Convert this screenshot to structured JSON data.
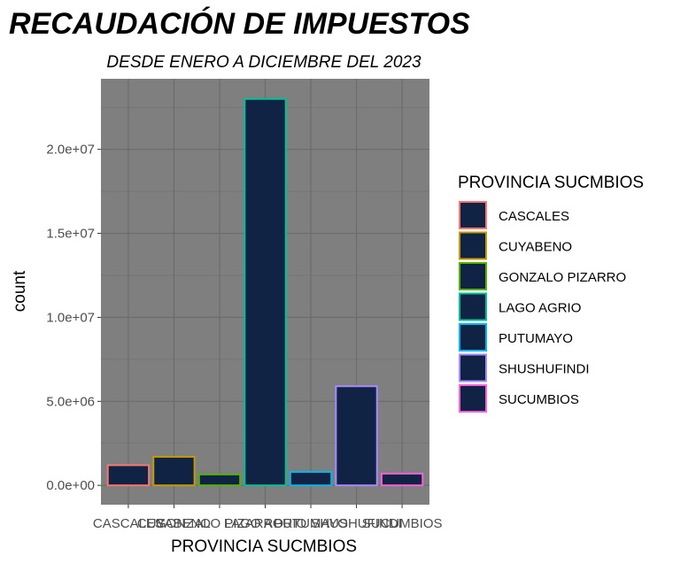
{
  "chart_data": {
    "type": "bar",
    "title": "RECAUDACIÓN DE IMPUESTOS",
    "subtitle": "DESDE ENERO A DICIEMBRE DEL 2023",
    "xlabel": "PROVINCIA SUCMBIOS",
    "ylabel": "count",
    "categories": [
      "CASCALES",
      "CUYABENO",
      "GONZALO PIZARRO",
      "LAGO AGRIO",
      "PUTUMAYO",
      "SHUSHUFINDI",
      "SUCUMBIOS"
    ],
    "values": [
      1200000,
      1700000,
      650000,
      23000000,
      800000,
      5900000,
      700000
    ],
    "ylim": [
      -1150000,
      24200000
    ],
    "yticks": [
      0,
      5000000,
      10000000,
      15000000,
      20000000
    ],
    "ytick_labels": [
      "0.0e+00",
      "5.0e+06",
      "1.0e+07",
      "1.5e+07",
      "2.0e+07"
    ],
    "bar_fill": "#112345",
    "outline_colors": [
      "#F8766D",
      "#C49A00",
      "#53B400",
      "#00C094",
      "#00B6EB",
      "#A58AFF",
      "#FB61D7"
    ],
    "panel_background": "#7f7f7f",
    "grid": true,
    "legend": {
      "title": "PROVINCIA SUCMBIOS",
      "position": "right",
      "items": [
        "CASCALES",
        "CUYABENO",
        "GONZALO PIZARRO",
        "LAGO AGRIO",
        "PUTUMAYO",
        "SHUSHUFINDI",
        "SUCUMBIOS"
      ]
    }
  }
}
